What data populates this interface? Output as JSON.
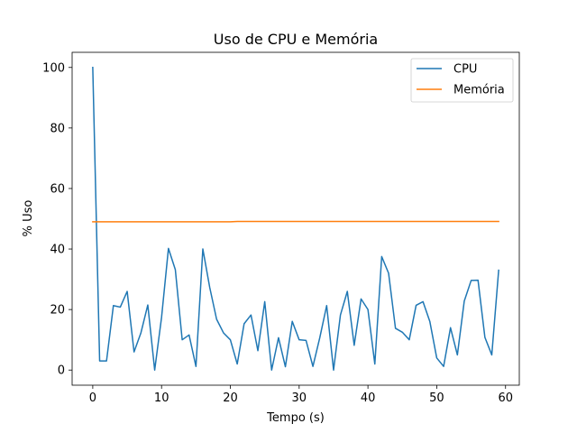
{
  "chart_data": {
    "type": "line",
    "title": "Uso de CPU e Memória",
    "xlabel": "Tempo (s)",
    "ylabel": "% Uso",
    "xlim": [
      -3,
      62
    ],
    "ylim": [
      -5,
      105
    ],
    "xticks": [
      0,
      10,
      20,
      30,
      40,
      50,
      60
    ],
    "yticks": [
      0,
      20,
      40,
      60,
      80,
      100
    ],
    "grid": false,
    "legend": "top-right",
    "x": [
      0,
      1,
      2,
      3,
      4,
      5,
      6,
      7,
      8,
      9,
      10,
      11,
      12,
      13,
      14,
      15,
      16,
      17,
      18,
      19,
      20,
      21,
      22,
      23,
      24,
      25,
      26,
      27,
      28,
      29,
      30,
      31,
      32,
      33,
      34,
      35,
      36,
      37,
      38,
      39,
      40,
      41,
      42,
      43,
      44,
      45,
      46,
      47,
      48,
      49,
      50,
      51,
      52,
      53,
      54,
      55,
      56,
      57,
      58,
      59
    ],
    "series": [
      {
        "name": "CPU",
        "color": "#1f77b4",
        "values": [
          100,
          3,
          3,
          21.3,
          20.8,
          26,
          6,
          12.3,
          21.5,
          0,
          17.4,
          40.2,
          33.2,
          10,
          11.6,
          1.2,
          40,
          27.3,
          16.8,
          12.3,
          10,
          2,
          15.3,
          18.2,
          6.4,
          22.6,
          0,
          10.7,
          1.1,
          16.1,
          10,
          9.8,
          1.2,
          10.7,
          21.3,
          0,
          18.2,
          26,
          8.2,
          23.5,
          20,
          2,
          37.5,
          32,
          13.8,
          12.5,
          10,
          21.4,
          22.6,
          16,
          4,
          1.2,
          14,
          5,
          22.8,
          29.6,
          29.7,
          10.8,
          5,
          33
        ]
      },
      {
        "name": "Memória",
        "color": "#ff7f0e",
        "values": [
          49,
          49,
          49,
          49,
          49,
          49,
          49,
          49,
          49,
          49,
          49,
          49,
          49,
          49,
          49,
          49,
          49,
          49,
          49,
          49,
          49,
          49.1,
          49.1,
          49.1,
          49.1,
          49.1,
          49.1,
          49.1,
          49.1,
          49.1,
          49.1,
          49.1,
          49.1,
          49.1,
          49.1,
          49.1,
          49.1,
          49.1,
          49.1,
          49.1,
          49.1,
          49.1,
          49.1,
          49.1,
          49.1,
          49.1,
          49.1,
          49.1,
          49.1,
          49.1,
          49.1,
          49.1,
          49.1,
          49.1,
          49.1,
          49.1,
          49.1,
          49.1,
          49.1,
          49.1
        ]
      }
    ]
  }
}
